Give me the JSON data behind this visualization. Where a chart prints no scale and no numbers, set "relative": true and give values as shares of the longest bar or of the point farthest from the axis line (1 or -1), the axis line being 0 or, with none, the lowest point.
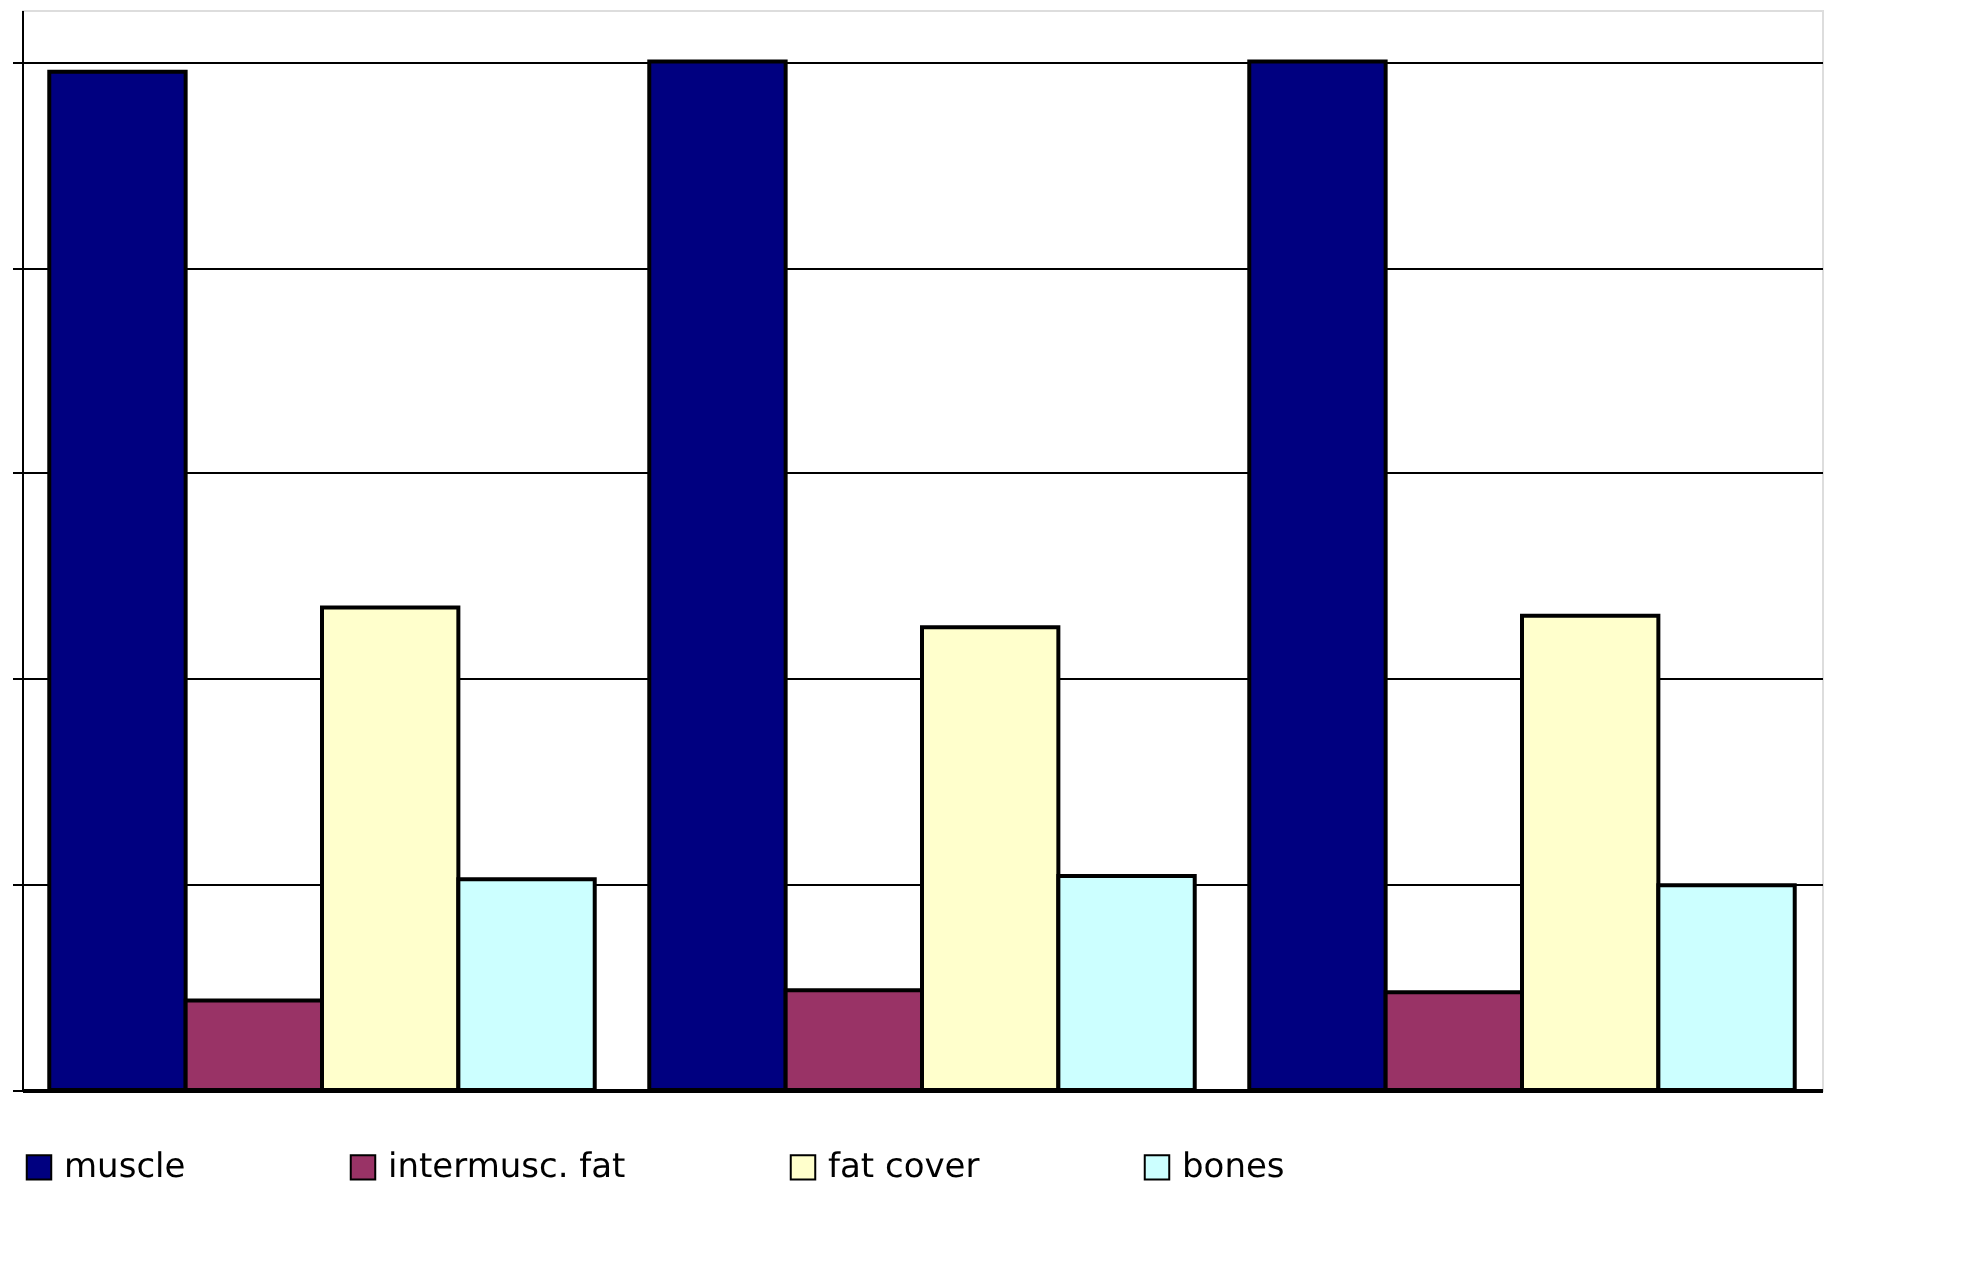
{
  "chart_data": {
    "type": "bar",
    "relative": true,
    "categories": [
      null,
      null,
      null
    ],
    "series": [
      {
        "name": "muscle",
        "color": "#000080",
        "values": [
          0.99,
          1,
          1
        ]
      },
      {
        "name": "intermusc. fat",
        "color": "#993366",
        "values": [
          0.087,
          0.097,
          0.095
        ]
      },
      {
        "name": "fat cover",
        "color": "#ffffcc",
        "values": [
          0.469,
          0.45,
          0.461
        ]
      },
      {
        "name": "bones",
        "color": "#ccffff",
        "values": [
          0.205,
          0.208,
          0.199
        ]
      }
    ],
    "grid": "y",
    "legend": "bottom"
  }
}
